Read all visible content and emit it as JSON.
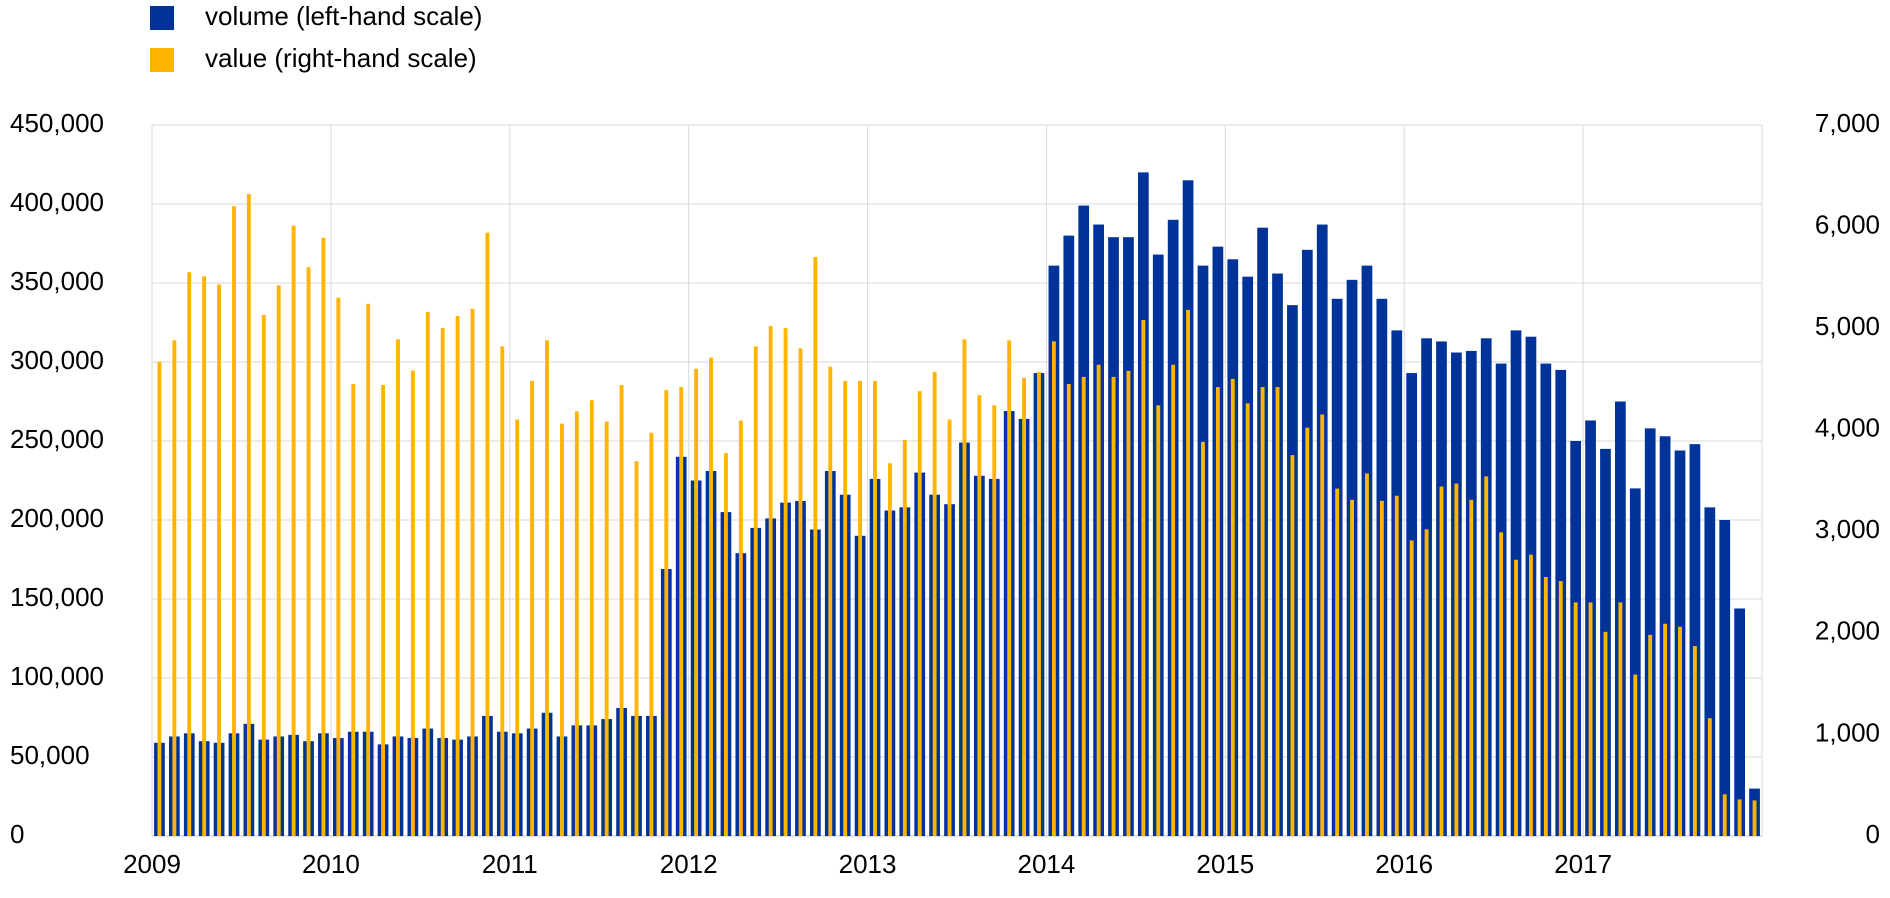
{
  "chart_data": {
    "type": "bar",
    "categories": [
      "2009",
      null,
      null,
      null,
      null,
      null,
      null,
      null,
      null,
      null,
      null,
      null,
      "2010",
      null,
      null,
      null,
      null,
      null,
      null,
      null,
      null,
      null,
      null,
      null,
      "2011",
      null,
      null,
      null,
      null,
      null,
      null,
      null,
      null,
      null,
      null,
      null,
      "2012",
      null,
      null,
      null,
      null,
      null,
      null,
      null,
      null,
      null,
      null,
      null,
      "2013",
      null,
      null,
      null,
      null,
      null,
      null,
      null,
      null,
      null,
      null,
      null,
      "2014",
      null,
      null,
      null,
      null,
      null,
      null,
      null,
      null,
      null,
      null,
      null,
      "2015",
      null,
      null,
      null,
      null,
      null,
      null,
      null,
      null,
      null,
      null,
      null,
      "2016",
      null,
      null,
      null,
      null,
      null,
      null,
      null,
      null,
      null,
      null,
      null,
      "2017",
      null,
      null,
      null,
      null,
      null,
      null,
      null,
      null,
      null,
      null,
      null
    ],
    "series": [
      {
        "name": "volume (left-hand scale)",
        "color": "#003399",
        "axis": "y",
        "values": [
          59000,
          63000,
          65000,
          60000,
          59000,
          65000,
          71000,
          61000,
          63000,
          64000,
          60000,
          65000,
          62000,
          66000,
          66000,
          58000,
          63000,
          62000,
          68000,
          62000,
          61000,
          63000,
          76000,
          66000,
          65000,
          68000,
          78000,
          63000,
          70000,
          70000,
          74000,
          81000,
          76000,
          76000,
          169000,
          240000,
          225000,
          231000,
          205000,
          179000,
          195000,
          201000,
          211000,
          212000,
          194000,
          231000,
          216000,
          190000,
          226000,
          206000,
          208000,
          230000,
          216000,
          210000,
          249000,
          228000,
          226000,
          269000,
          264000,
          293000,
          361000,
          380000,
          399000,
          387000,
          379000,
          379000,
          420000,
          368000,
          390000,
          415000,
          361000,
          373000,
          365000,
          354000,
          385000,
          356000,
          336000,
          371000,
          387000,
          340000,
          352000,
          361000,
          340000,
          320000,
          293000,
          315000,
          313000,
          306000,
          307000,
          315000,
          299000,
          320000,
          316000,
          299000,
          295000,
          250000,
          263000,
          245000,
          275000,
          220000,
          258000,
          253000,
          244000,
          248000,
          208000,
          200000,
          144000,
          30000
        ]
      },
      {
        "name": "value (right-hand scale)",
        "color": "#ffb400",
        "axis": "y2",
        "values": [
          4670,
          4880,
          5550,
          5510,
          5430,
          6200,
          6320,
          5130,
          5420,
          6010,
          5600,
          5890,
          5300,
          4450,
          5240,
          4440,
          4890,
          4580,
          5160,
          5000,
          5120,
          5190,
          5940,
          4820,
          4100,
          4480,
          4880,
          4060,
          4180,
          4290,
          4080,
          4440,
          3690,
          3970,
          4390,
          4420,
          4600,
          4710,
          3770,
          4090,
          4820,
          5020,
          5000,
          4800,
          5700,
          4620,
          4480,
          4480,
          4480,
          3670,
          3900,
          4380,
          4570,
          4100,
          4890,
          4340,
          4240,
          4880,
          4510,
          4570,
          4870,
          4450,
          4520,
          4640,
          4520,
          4580,
          5080,
          4240,
          4640,
          5180,
          3880,
          4420,
          4500,
          4260,
          4420,
          4420,
          3750,
          4020,
          4150,
          3420,
          3310,
          3570,
          3300,
          3350,
          2910,
          3020,
          3440,
          3470,
          3310,
          3540,
          2990,
          2720,
          2770,
          2550,
          2510,
          2300,
          2300,
          2010,
          2300,
          1590,
          1980,
          2090,
          2060,
          1870,
          1160,
          410,
          360,
          350
        ]
      }
    ],
    "ylim": [
      0,
      450000
    ],
    "yticks": [
      0,
      {
        "value": 50000,
        "label": "50,000"
      },
      {
        "value": 100000,
        "label": "100,000"
      },
      {
        "value": 150000,
        "label": "150,000"
      },
      {
        "value": 200000,
        "label": "200,000"
      },
      {
        "value": 250000,
        "label": "250,000"
      },
      {
        "value": 300000,
        "label": "300,000"
      },
      {
        "value": 350000,
        "label": "350,000"
      },
      {
        "value": 400000,
        "label": "400,000"
      },
      {
        "value": 450000,
        "label": "450,000"
      }
    ],
    "y2lim": [
      0,
      7000
    ],
    "y2ticks": [
      0,
      {
        "value": 1000,
        "label": "1,000"
      },
      {
        "value": 2000,
        "label": "2,000"
      },
      {
        "value": 3000,
        "label": "3,000"
      },
      {
        "value": 4000,
        "label": "4,000"
      },
      {
        "value": 5000,
        "label": "5,000"
      },
      {
        "value": 6000,
        "label": "6,000"
      },
      {
        "value": 7000,
        "label": "7,000"
      }
    ],
    "grid": true,
    "legend": "top-left"
  }
}
